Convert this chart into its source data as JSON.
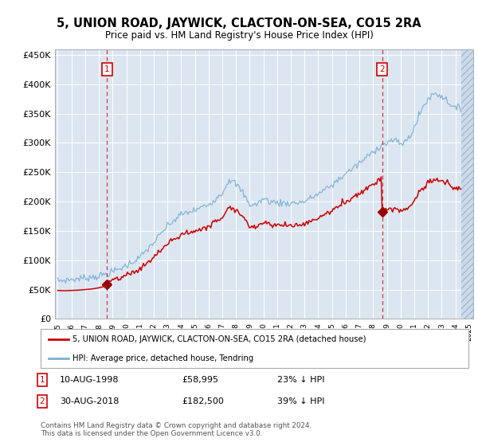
{
  "title": "5, UNION ROAD, JAYWICK, CLACTON-ON-SEA, CO15 2RA",
  "subtitle": "Price paid vs. HM Land Registry's House Price Index (HPI)",
  "ytick_labels": [
    "£0",
    "£50K",
    "£100K",
    "£150K",
    "£200K",
    "£250K",
    "£300K",
    "£350K",
    "£400K",
    "£450K"
  ],
  "yticks": [
    0,
    50000,
    100000,
    150000,
    200000,
    250000,
    300000,
    350000,
    400000,
    450000
  ],
  "xlim_start": 1995.0,
  "xlim_end": 2025.3,
  "ylim_min": 0,
  "ylim_max": 460000,
  "background_color": "#dce6f1",
  "grid_color": "#ffffff",
  "legend_label_red": "5, UNION ROAD, JAYWICK, CLACTON-ON-SEA, CO15 2RA (detached house)",
  "legend_label_blue": "HPI: Average price, detached house, Tendring",
  "point1_date": "10-AUG-1998",
  "point1_price": "£58,995",
  "point1_hpi": "23% ↓ HPI",
  "point1_x": 1998.6,
  "point1_y": 58995,
  "point2_date": "30-AUG-2018",
  "point2_price": "£182,500",
  "point2_hpi": "39% ↓ HPI",
  "point2_x": 2018.66,
  "point2_y": 182500,
  "footer": "Contains HM Land Registry data © Crown copyright and database right 2024.\nThis data is licensed under the Open Government Licence v3.0.",
  "hpi_line_color": "#7ab0d4",
  "price_line_color": "#cc0000",
  "marker_color": "#990000",
  "hatch_start": 2024.45
}
